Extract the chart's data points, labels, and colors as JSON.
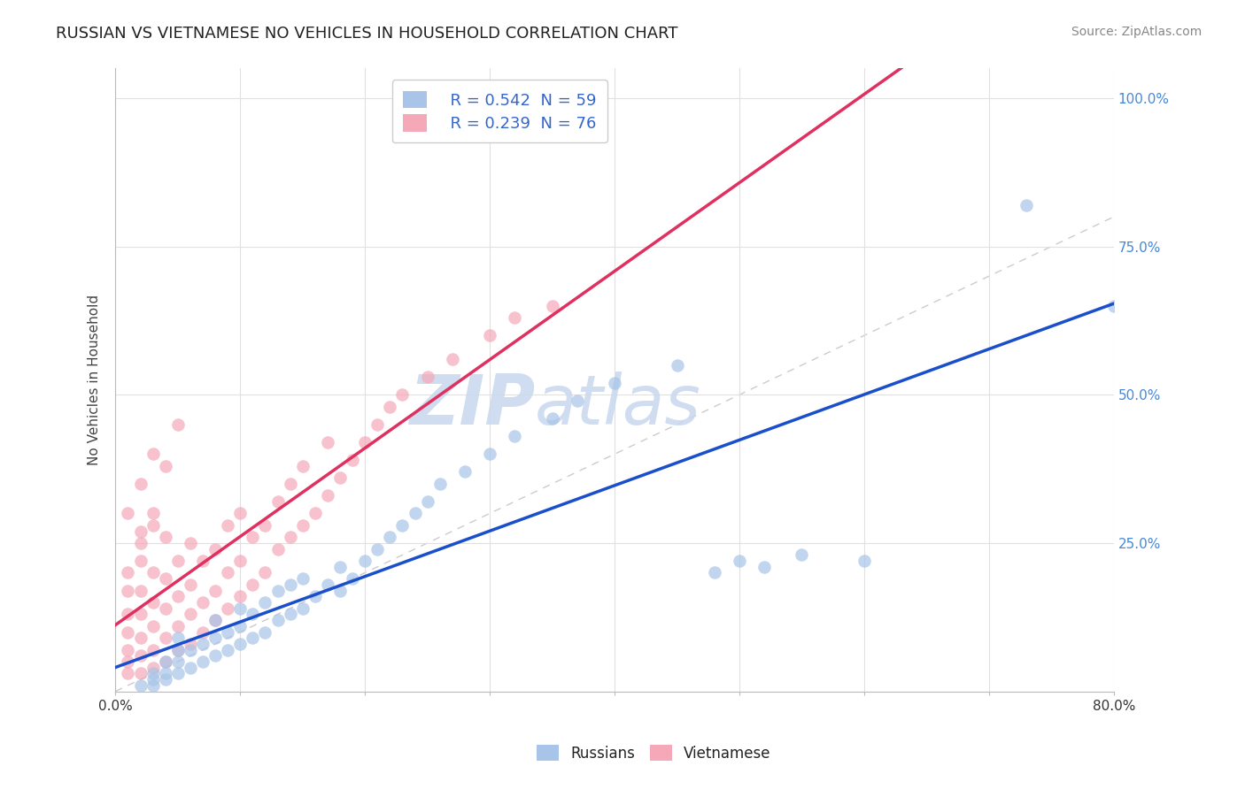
{
  "title": "RUSSIAN VS VIETNAMESE NO VEHICLES IN HOUSEHOLD CORRELATION CHART",
  "source_text": "Source: ZipAtlas.com",
  "ylabel": "No Vehicles in Household",
  "xlim": [
    0.0,
    0.8
  ],
  "ylim": [
    0.0,
    1.05
  ],
  "russian_R": 0.542,
  "russian_N": 59,
  "vietnamese_R": 0.239,
  "vietnamese_N": 76,
  "russian_color": "#a8c4e8",
  "vietnamese_color": "#f5a8b8",
  "russian_line_color": "#1a4fcc",
  "vietnamese_line_color": "#e03060",
  "diagonal_color": "#cccccc",
  "background_color": "#ffffff",
  "grid_color": "#e0e0e0",
  "watermark_color": "#d0dff0",
  "title_color": "#222222",
  "legend_label_russian": "Russians",
  "legend_label_vietnamese": "Vietnamese",
  "russian_x": [
    0.02,
    0.03,
    0.03,
    0.03,
    0.04,
    0.04,
    0.04,
    0.05,
    0.05,
    0.05,
    0.05,
    0.06,
    0.06,
    0.07,
    0.07,
    0.08,
    0.08,
    0.08,
    0.09,
    0.09,
    0.1,
    0.1,
    0.1,
    0.11,
    0.11,
    0.12,
    0.12,
    0.13,
    0.13,
    0.14,
    0.14,
    0.15,
    0.15,
    0.16,
    0.17,
    0.18,
    0.18,
    0.19,
    0.2,
    0.21,
    0.22,
    0.23,
    0.24,
    0.25,
    0.26,
    0.28,
    0.3,
    0.32,
    0.35,
    0.37,
    0.4,
    0.45,
    0.48,
    0.5,
    0.52,
    0.55,
    0.6,
    0.73,
    0.8
  ],
  "russian_y": [
    0.01,
    0.01,
    0.02,
    0.03,
    0.02,
    0.03,
    0.05,
    0.03,
    0.05,
    0.07,
    0.09,
    0.04,
    0.07,
    0.05,
    0.08,
    0.06,
    0.09,
    0.12,
    0.07,
    0.1,
    0.08,
    0.11,
    0.14,
    0.09,
    0.13,
    0.1,
    0.15,
    0.12,
    0.17,
    0.13,
    0.18,
    0.14,
    0.19,
    0.16,
    0.18,
    0.17,
    0.21,
    0.19,
    0.22,
    0.24,
    0.26,
    0.28,
    0.3,
    0.32,
    0.35,
    0.37,
    0.4,
    0.43,
    0.46,
    0.49,
    0.52,
    0.55,
    0.2,
    0.22,
    0.21,
    0.23,
    0.22,
    0.82,
    0.65
  ],
  "vietnamese_x": [
    0.01,
    0.01,
    0.01,
    0.01,
    0.01,
    0.01,
    0.02,
    0.02,
    0.02,
    0.02,
    0.02,
    0.02,
    0.02,
    0.03,
    0.03,
    0.03,
    0.03,
    0.03,
    0.03,
    0.04,
    0.04,
    0.04,
    0.04,
    0.04,
    0.05,
    0.05,
    0.05,
    0.05,
    0.06,
    0.06,
    0.06,
    0.06,
    0.07,
    0.07,
    0.07,
    0.08,
    0.08,
    0.08,
    0.09,
    0.09,
    0.09,
    0.1,
    0.1,
    0.1,
    0.11,
    0.11,
    0.12,
    0.12,
    0.13,
    0.13,
    0.14,
    0.14,
    0.15,
    0.15,
    0.16,
    0.17,
    0.17,
    0.18,
    0.19,
    0.2,
    0.21,
    0.22,
    0.23,
    0.25,
    0.27,
    0.3,
    0.32,
    0.35,
    0.01,
    0.01,
    0.02,
    0.02,
    0.03,
    0.03,
    0.04,
    0.05
  ],
  "vietnamese_y": [
    0.03,
    0.05,
    0.07,
    0.1,
    0.13,
    0.17,
    0.03,
    0.06,
    0.09,
    0.13,
    0.17,
    0.22,
    0.27,
    0.04,
    0.07,
    0.11,
    0.15,
    0.2,
    0.28,
    0.05,
    0.09,
    0.14,
    0.19,
    0.26,
    0.07,
    0.11,
    0.16,
    0.22,
    0.08,
    0.13,
    0.18,
    0.25,
    0.1,
    0.15,
    0.22,
    0.12,
    0.17,
    0.24,
    0.14,
    0.2,
    0.28,
    0.16,
    0.22,
    0.3,
    0.18,
    0.26,
    0.2,
    0.28,
    0.24,
    0.32,
    0.26,
    0.35,
    0.28,
    0.38,
    0.3,
    0.33,
    0.42,
    0.36,
    0.39,
    0.42,
    0.45,
    0.48,
    0.5,
    0.53,
    0.56,
    0.6,
    0.63,
    0.65,
    0.2,
    0.3,
    0.25,
    0.35,
    0.3,
    0.4,
    0.38,
    0.45
  ]
}
